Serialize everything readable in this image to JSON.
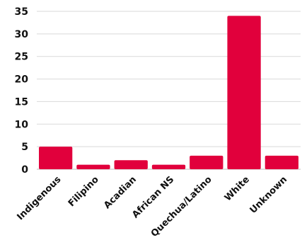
{
  "chart_data": {
    "type": "bar",
    "categories": [
      "Indigenous",
      "Filipino",
      "Acadian",
      "African NS",
      "Quechua/Latino",
      "White",
      "Unknown"
    ],
    "values": [
      5,
      1,
      2,
      1,
      3,
      34,
      3
    ],
    "title": "",
    "xlabel": "",
    "ylabel": "",
    "ylim": [
      0,
      35
    ],
    "y_ticks": [
      0,
      5,
      10,
      15,
      20,
      25,
      30,
      35
    ],
    "grid": true,
    "bar_color": "#e1003c"
  }
}
